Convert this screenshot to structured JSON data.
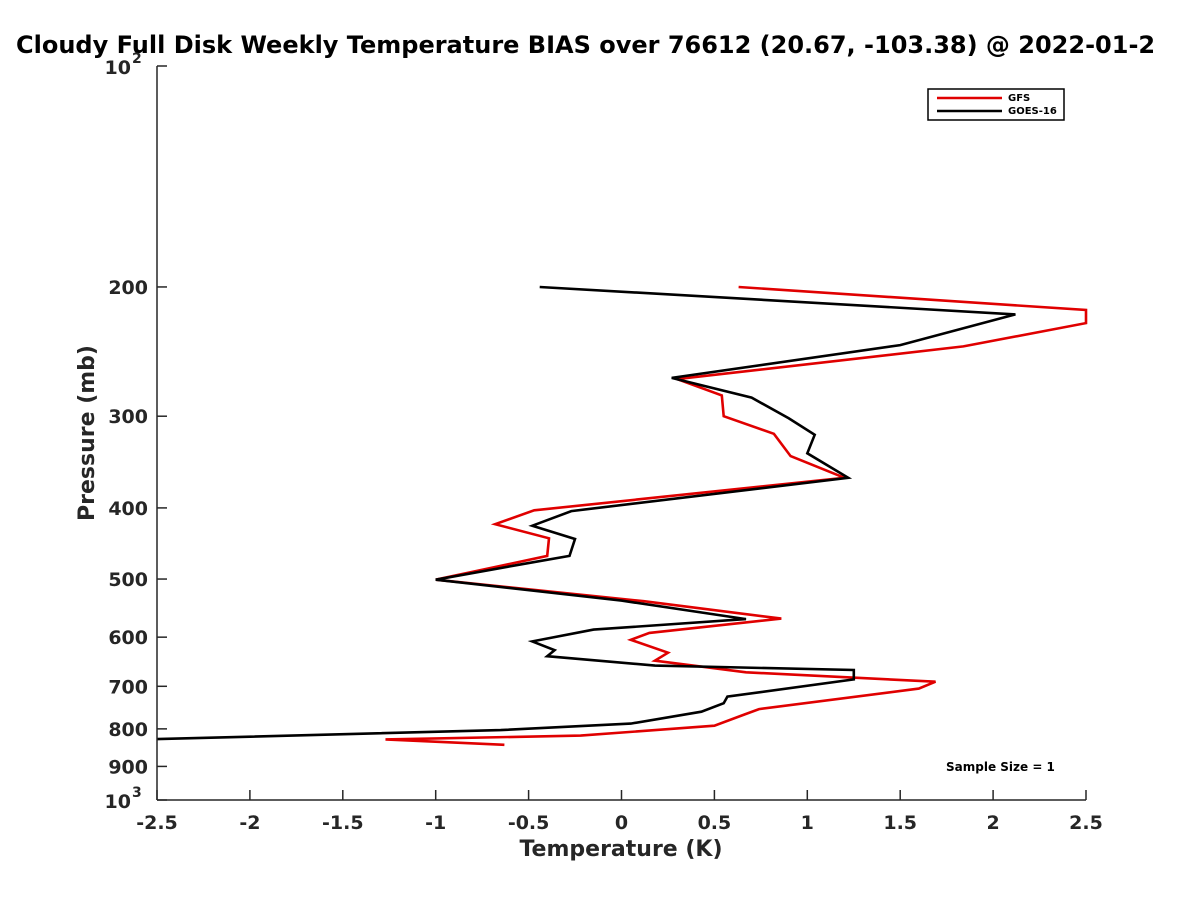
{
  "chart_data": {
    "type": "line",
    "title": "Cloudy Full Disk Weekly Temperature BIAS over 76612 (20.67, -103.38) @ 2022-01-2",
    "xlabel": "Temperature (K)",
    "ylabel": "Pressure (mb)",
    "xlim": [
      -2.5,
      2.5
    ],
    "ylim": [
      100,
      1000
    ],
    "yscale": "log",
    "yreversed": true,
    "grid": false,
    "legend_position": "top-right",
    "x_ticks": [
      -2.5,
      -2,
      -1.5,
      -1,
      -0.5,
      0,
      0.5,
      1,
      1.5,
      2,
      2.5
    ],
    "x_tick_labels": [
      "-2.5",
      "-2",
      "-1.5",
      "-1",
      "-0.5",
      "0",
      "0.5",
      "1",
      "1.5",
      "2",
      "2.5"
    ],
    "y_ticks": [
      200,
      300,
      400,
      500,
      600,
      700,
      800,
      900
    ],
    "y_tick_labels": [
      "200",
      "300",
      "400",
      "500",
      "600",
      "700",
      "800",
      "900"
    ],
    "y_decade_ticks": [
      100,
      1000
    ],
    "y_decade_labels": [
      {
        "base": "10",
        "exp": "2"
      },
      {
        "base": "10",
        "exp": "3"
      }
    ],
    "annotation": "Sample Size = 1",
    "series": [
      {
        "name": "GFS",
        "color": "#e00000",
        "points": [
          {
            "x": 0.63,
            "p": 200
          },
          {
            "x": 2.5,
            "p": 215
          },
          {
            "x": 2.5,
            "p": 224
          },
          {
            "x": 1.84,
            "p": 241
          },
          {
            "x": 0.3,
            "p": 267
          },
          {
            "x": 0.54,
            "p": 281
          },
          {
            "x": 0.55,
            "p": 300
          },
          {
            "x": 0.82,
            "p": 317
          },
          {
            "x": 0.91,
            "p": 340
          },
          {
            "x": 1.2,
            "p": 364
          },
          {
            "x": -0.47,
            "p": 403
          },
          {
            "x": -0.68,
            "p": 421
          },
          {
            "x": -0.39,
            "p": 440
          },
          {
            "x": -0.4,
            "p": 465
          },
          {
            "x": -1.0,
            "p": 501
          },
          {
            "x": 0.12,
            "p": 536
          },
          {
            "x": 0.86,
            "p": 566
          },
          {
            "x": 0.15,
            "p": 592
          },
          {
            "x": 0.05,
            "p": 605
          },
          {
            "x": 0.25,
            "p": 630
          },
          {
            "x": 0.18,
            "p": 646
          },
          {
            "x": 0.67,
            "p": 670
          },
          {
            "x": 1.69,
            "p": 690
          },
          {
            "x": 1.6,
            "p": 705
          },
          {
            "x": 0.74,
            "p": 752
          },
          {
            "x": 0.66,
            "p": 765
          },
          {
            "x": 0.5,
            "p": 792
          },
          {
            "x": -0.22,
            "p": 817
          },
          {
            "x": -1.27,
            "p": 827
          },
          {
            "x": -0.63,
            "p": 841
          }
        ]
      },
      {
        "name": "GOES-16",
        "color": "#000000",
        "points": [
          {
            "x": -0.44,
            "p": 200
          },
          {
            "x": 2.12,
            "p": 218
          },
          {
            "x": 1.5,
            "p": 240
          },
          {
            "x": 0.27,
            "p": 266
          },
          {
            "x": 0.7,
            "p": 283
          },
          {
            "x": 0.9,
            "p": 302
          },
          {
            "x": 1.04,
            "p": 318
          },
          {
            "x": 1.0,
            "p": 337
          },
          {
            "x": 1.22,
            "p": 364
          },
          {
            "x": -0.27,
            "p": 404
          },
          {
            "x": -0.48,
            "p": 423
          },
          {
            "x": -0.25,
            "p": 441
          },
          {
            "x": -0.28,
            "p": 465
          },
          {
            "x": -0.55,
            "p": 478
          },
          {
            "x": -1.0,
            "p": 501
          },
          {
            "x": 0.0,
            "p": 535
          },
          {
            "x": 0.67,
            "p": 567
          },
          {
            "x": -0.15,
            "p": 586
          },
          {
            "x": -0.48,
            "p": 608
          },
          {
            "x": -0.36,
            "p": 625
          },
          {
            "x": -0.4,
            "p": 637
          },
          {
            "x": 0.18,
            "p": 656
          },
          {
            "x": 1.25,
            "p": 665
          },
          {
            "x": 1.25,
            "p": 685
          },
          {
            "x": 0.57,
            "p": 723
          },
          {
            "x": 0.55,
            "p": 738
          },
          {
            "x": 0.43,
            "p": 758
          },
          {
            "x": 0.05,
            "p": 787
          },
          {
            "x": -0.65,
            "p": 803
          },
          {
            "x": -2.5,
            "p": 826
          }
        ]
      }
    ]
  }
}
